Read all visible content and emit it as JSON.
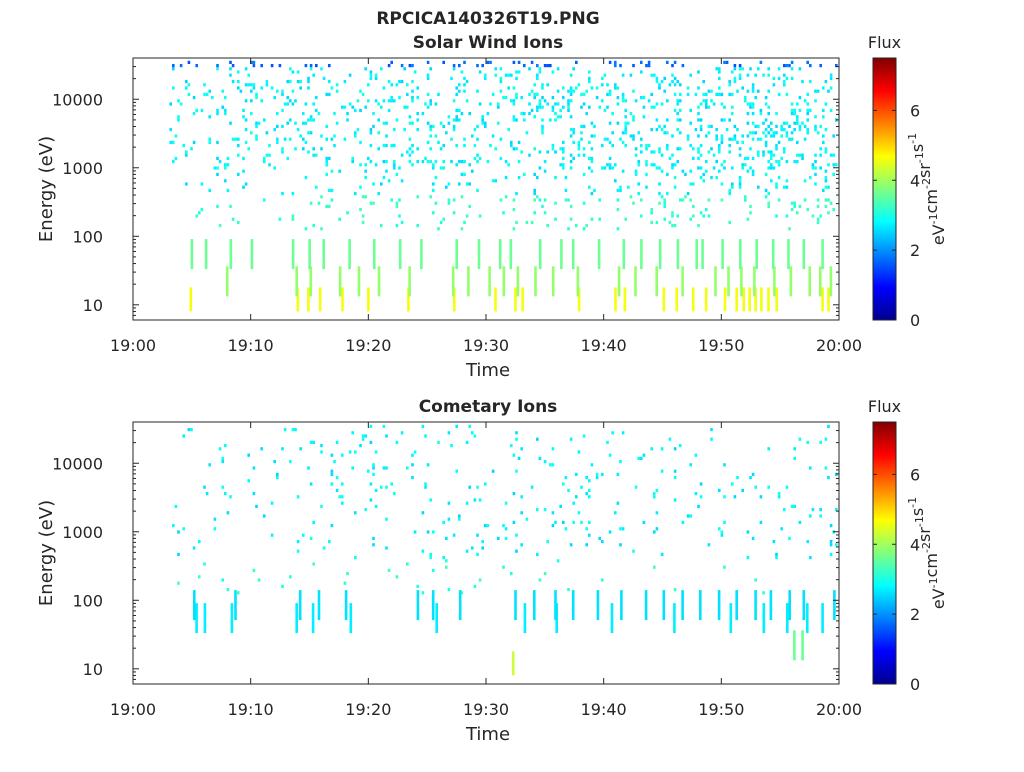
{
  "figure": {
    "filename": "RPCICA140326T19.PNG"
  },
  "colorbar": {
    "label": "Flux",
    "unit_parts": [
      "eV",
      "-1",
      "cm",
      "-2",
      "sr",
      "-1",
      "s",
      "-1"
    ],
    "range": [
      0,
      7.5
    ],
    "ticks": [
      "0",
      "2",
      "4",
      "6"
    ],
    "colormap": "jet"
  },
  "chart_data": [
    {
      "type": "heatmap",
      "title": "Solar Wind Ions",
      "xlabel": "Time",
      "ylabel": "Energy (eV)",
      "xticks": [
        "19:00",
        "19:10",
        "19:20",
        "19:30",
        "19:40",
        "19:50",
        "20:00"
      ],
      "xlim_minutes": [
        0,
        60
      ],
      "yticks": [
        "10",
        "100",
        "1000",
        "10000"
      ],
      "ylim": [
        6,
        40000
      ],
      "yscale": "log",
      "bands": [
        {
          "energy_eV": 12,
          "flux": 4.6,
          "minutes": [
            4.9,
            14.0,
            14.9,
            15.9,
            17.8,
            20.0,
            23.4,
            27.3,
            30.8,
            32.5,
            33.1,
            37.9,
            41.0,
            41.8,
            45.1,
            46.2,
            47.6,
            48.7,
            50.3,
            51.3,
            51.9,
            52.4,
            52.9,
            53.4,
            54.0,
            54.7,
            58.6,
            59.1
          ]
        },
        {
          "energy_eV": 22,
          "flux": 3.9,
          "minutes": [
            8.0,
            13.9,
            15.1,
            17.6,
            19.2,
            20.9,
            23.5,
            27.2,
            28.5,
            30.3,
            31.5,
            32.7,
            34.2,
            35.7,
            37.8,
            41.3,
            42.7,
            44.5,
            46.7,
            49.5,
            50.6,
            51.7,
            52.8,
            54.5,
            55.9,
            57.5,
            58.4,
            59.3
          ]
        },
        {
          "energy_eV": 55,
          "flux": 3.6,
          "minutes": [
            5.0,
            6.2,
            8.3,
            10.1,
            13.6,
            15.0,
            16.2,
            18.4,
            20.5,
            22.7,
            24.5,
            27.5,
            29.4,
            31.2,
            32.1,
            34.6,
            36.4,
            37.4,
            39.6,
            41.7,
            43.2,
            44.8,
            46.3,
            47.9,
            48.4,
            50.1,
            51.6,
            53.0,
            54.4,
            55.7,
            57.0,
            58.6
          ]
        }
      ],
      "scatter_density": 0.16
    },
    {
      "type": "heatmap",
      "title": "Cometary Ions",
      "xlabel": "Time",
      "ylabel": "Energy (eV)",
      "xticks": [
        "19:00",
        "19:10",
        "19:20",
        "19:30",
        "19:40",
        "19:50",
        "20:00"
      ],
      "xlim_minutes": [
        0,
        60
      ],
      "yticks": [
        "10",
        "100",
        "1000",
        "10000"
      ],
      "ylim": [
        6,
        40000
      ],
      "yscale": "log",
      "bands": [
        {
          "energy_eV": 12,
          "flux": 4.3,
          "minutes": [
            32.3
          ]
        },
        {
          "energy_eV": 22,
          "flux": 3.6,
          "minutes": [
            56.2,
            56.9
          ]
        },
        {
          "energy_eV": 55,
          "flux": 2.7,
          "minutes": [
            5.4,
            6.1,
            8.4,
            13.9,
            15.3,
            18.5,
            25.8,
            33.3,
            36.0,
            40.7,
            46.0,
            50.8,
            53.6,
            55.6,
            57.3,
            58.6
          ]
        },
        {
          "energy_eV": 85,
          "flux": 2.6,
          "minutes": [
            5.2,
            8.7,
            14.2,
            15.8,
            18.1,
            24.2,
            25.5,
            27.8,
            32.5,
            34.1,
            35.9,
            37.4,
            39.5,
            41.5,
            43.6,
            45.1,
            46.7,
            48.2,
            49.8,
            51.3,
            52.9,
            54.2,
            55.8,
            57.0,
            59.6
          ]
        }
      ],
      "scatter_density": 0.028
    }
  ]
}
